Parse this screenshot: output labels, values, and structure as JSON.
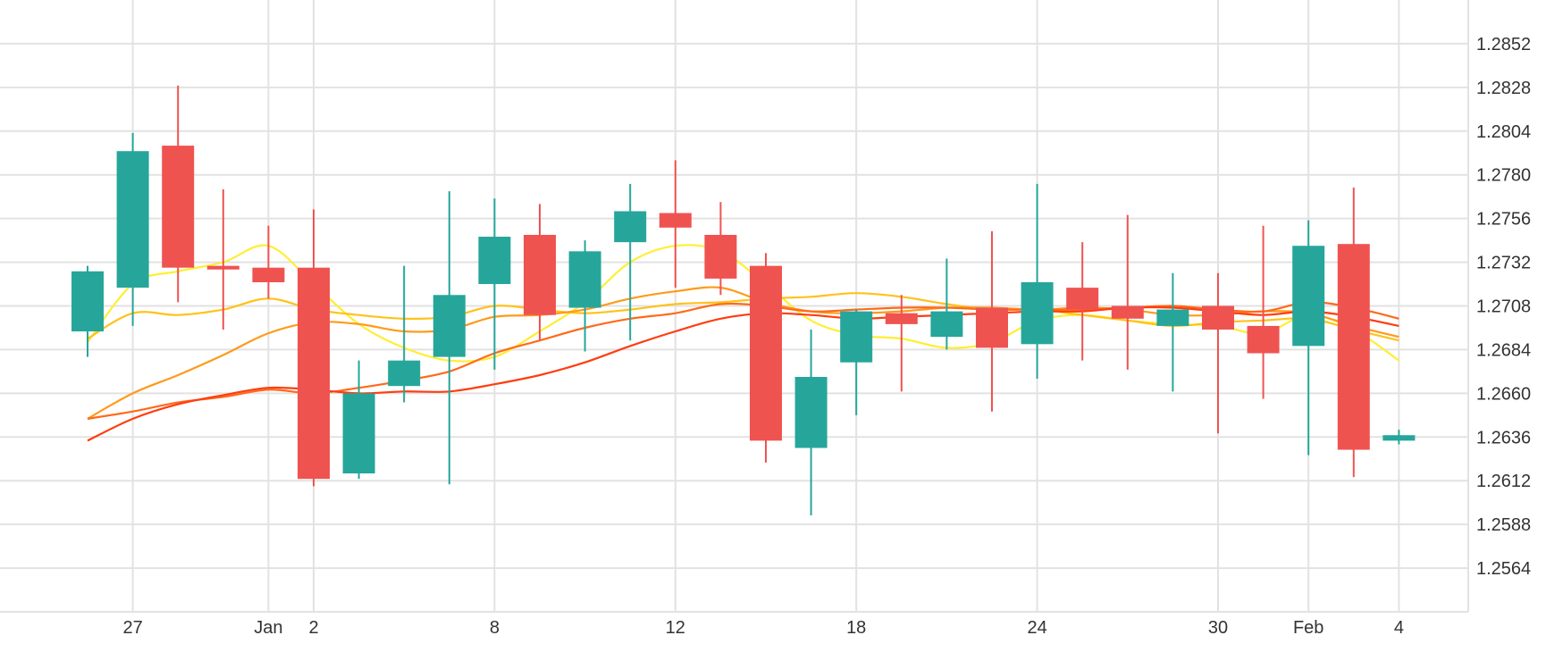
{
  "chart_data": {
    "type": "candlestick",
    "title": "",
    "xlabel": "",
    "ylabel": "",
    "ylim": [
      1.254,
      1.2876
    ],
    "grid": true,
    "colors": {
      "up": "#26a69a",
      "down": "#ef5350"
    },
    "y_ticks": [
      "1.2564",
      "1.2588",
      "1.2612",
      "1.2636",
      "1.2660",
      "1.2684",
      "1.2708",
      "1.2732",
      "1.2756",
      "1.2780",
      "1.2804",
      "1.2828",
      "1.2852"
    ],
    "x_ticks": [
      {
        "label": "27",
        "idx": 1
      },
      {
        "label": "Jan",
        "idx": 4
      },
      {
        "label": "2",
        "idx": 5
      },
      {
        "label": "8",
        "idx": 9
      },
      {
        "label": "12",
        "idx": 13
      },
      {
        "label": "18",
        "idx": 17
      },
      {
        "label": "24",
        "idx": 21
      },
      {
        "label": "30",
        "idx": 25
      },
      {
        "label": "Feb",
        "idx": 27
      },
      {
        "label": "4",
        "idx": 29
      }
    ],
    "candles": [
      {
        "o": 1.2694,
        "h": 1.273,
        "l": 1.268,
        "c": 1.2727
      },
      {
        "o": 1.2718,
        "h": 1.2803,
        "l": 1.2697,
        "c": 1.2793
      },
      {
        "o": 1.2796,
        "h": 1.2829,
        "l": 1.271,
        "c": 1.2729
      },
      {
        "o": 1.273,
        "h": 1.2772,
        "l": 1.2695,
        "c": 1.2728
      },
      {
        "o": 1.2729,
        "h": 1.2752,
        "l": 1.2712,
        "c": 1.2721
      },
      {
        "o": 1.2729,
        "h": 1.2761,
        "l": 1.2609,
        "c": 1.2613
      },
      {
        "o": 1.2616,
        "h": 1.2678,
        "l": 1.2613,
        "c": 1.266
      },
      {
        "o": 1.2664,
        "h": 1.273,
        "l": 1.2655,
        "c": 1.2678
      },
      {
        "o": 1.268,
        "h": 1.2771,
        "l": 1.261,
        "c": 1.2714
      },
      {
        "o": 1.272,
        "h": 1.2767,
        "l": 1.2673,
        "c": 1.2746
      },
      {
        "o": 1.2747,
        "h": 1.2764,
        "l": 1.2689,
        "c": 1.2703
      },
      {
        "o": 1.2707,
        "h": 1.2744,
        "l": 1.2683,
        "c": 1.2738
      },
      {
        "o": 1.2743,
        "h": 1.2775,
        "l": 1.2689,
        "c": 1.276
      },
      {
        "o": 1.2759,
        "h": 1.2788,
        "l": 1.2718,
        "c": 1.2751
      },
      {
        "o": 1.2747,
        "h": 1.2765,
        "l": 1.2714,
        "c": 1.2723
      },
      {
        "o": 1.273,
        "h": 1.2737,
        "l": 1.2622,
        "c": 1.2634
      },
      {
        "o": 1.263,
        "h": 1.2695,
        "l": 1.2593,
        "c": 1.2669
      },
      {
        "o": 1.2677,
        "h": 1.2706,
        "l": 1.2648,
        "c": 1.2705
      },
      {
        "o": 1.2704,
        "h": 1.2714,
        "l": 1.2661,
        "c": 1.2698
      },
      {
        "o": 1.2691,
        "h": 1.2734,
        "l": 1.2684,
        "c": 1.2705
      },
      {
        "o": 1.2707,
        "h": 1.2749,
        "l": 1.265,
        "c": 1.2685
      },
      {
        "o": 1.2687,
        "h": 1.2775,
        "l": 1.2668,
        "c": 1.2721
      },
      {
        "o": 1.2718,
        "h": 1.2743,
        "l": 1.2678,
        "c": 1.2706
      },
      {
        "o": 1.2708,
        "h": 1.2758,
        "l": 1.2673,
        "c": 1.2701
      },
      {
        "o": 1.2697,
        "h": 1.2726,
        "l": 1.2661,
        "c": 1.2706
      },
      {
        "o": 1.2708,
        "h": 1.2726,
        "l": 1.2638,
        "c": 1.2695
      },
      {
        "o": 1.2697,
        "h": 1.2752,
        "l": 1.2657,
        "c": 1.2682
      },
      {
        "o": 1.2686,
        "h": 1.2755,
        "l": 1.2626,
        "c": 1.2741
      },
      {
        "o": 1.2742,
        "h": 1.2773,
        "l": 1.2614,
        "c": 1.2629
      },
      {
        "o": 1.2634,
        "h": 1.264,
        "l": 1.2632,
        "c": 1.2637
      }
    ],
    "series": [
      {
        "color": "#ffee33",
        "values": [
          1.2688,
          1.272,
          1.2727,
          1.2732,
          1.2741,
          1.272,
          1.2698,
          1.2685,
          1.2678,
          1.268,
          1.2694,
          1.271,
          1.2732,
          1.2741,
          1.2738,
          1.272,
          1.27,
          1.2692,
          1.269,
          1.2685,
          1.2688,
          1.27,
          1.2703,
          1.27,
          1.2698,
          1.2697,
          1.2693,
          1.2703,
          1.2695,
          1.2678
        ]
      },
      {
        "color": "#ffc21a",
        "values": [
          1.269,
          1.2704,
          1.2703,
          1.2706,
          1.2712,
          1.2706,
          1.2703,
          1.2701,
          1.2702,
          1.2708,
          1.2706,
          1.2704,
          1.2706,
          1.2709,
          1.271,
          1.2712,
          1.2713,
          1.2715,
          1.2713,
          1.2709,
          1.2706,
          1.2706,
          1.2703,
          1.27,
          1.2697,
          1.2699,
          1.27,
          1.2701,
          1.2695,
          1.2689
        ]
      },
      {
        "color": "#ff9a1a",
        "values": [
          1.2646,
          1.266,
          1.267,
          1.2681,
          1.2693,
          1.2699,
          1.2698,
          1.2694,
          1.2695,
          1.2702,
          1.2703,
          1.2706,
          1.2712,
          1.2716,
          1.2718,
          1.271,
          1.2705,
          1.2704,
          1.2705,
          1.2707,
          1.2707,
          1.2706,
          1.2707,
          1.2706,
          1.2703,
          1.2703,
          1.2705,
          1.2704,
          1.2697,
          1.2691
        ]
      },
      {
        "color": "#ff6a1a",
        "values": [
          1.2646,
          1.265,
          1.2655,
          1.2658,
          1.2662,
          1.266,
          1.2663,
          1.2667,
          1.2672,
          1.2682,
          1.2689,
          1.2696,
          1.2701,
          1.2704,
          1.2709,
          1.2708,
          1.2705,
          1.2706,
          1.2707,
          1.2707,
          1.2706,
          1.2706,
          1.2706,
          1.2707,
          1.2708,
          1.2706,
          1.2705,
          1.271,
          1.2707,
          1.2701
        ]
      },
      {
        "color": "#ff3d10",
        "values": [
          1.2634,
          1.2646,
          1.2654,
          1.2659,
          1.2663,
          1.2662,
          1.266,
          1.2661,
          1.2661,
          1.2665,
          1.267,
          1.2677,
          1.2686,
          1.2694,
          1.2701,
          1.2704,
          1.2703,
          1.2701,
          1.2702,
          1.2703,
          1.2704,
          1.2705,
          1.2705,
          1.2707,
          1.2707,
          1.2705,
          1.2703,
          1.2705,
          1.2702,
          1.2697
        ]
      }
    ]
  }
}
